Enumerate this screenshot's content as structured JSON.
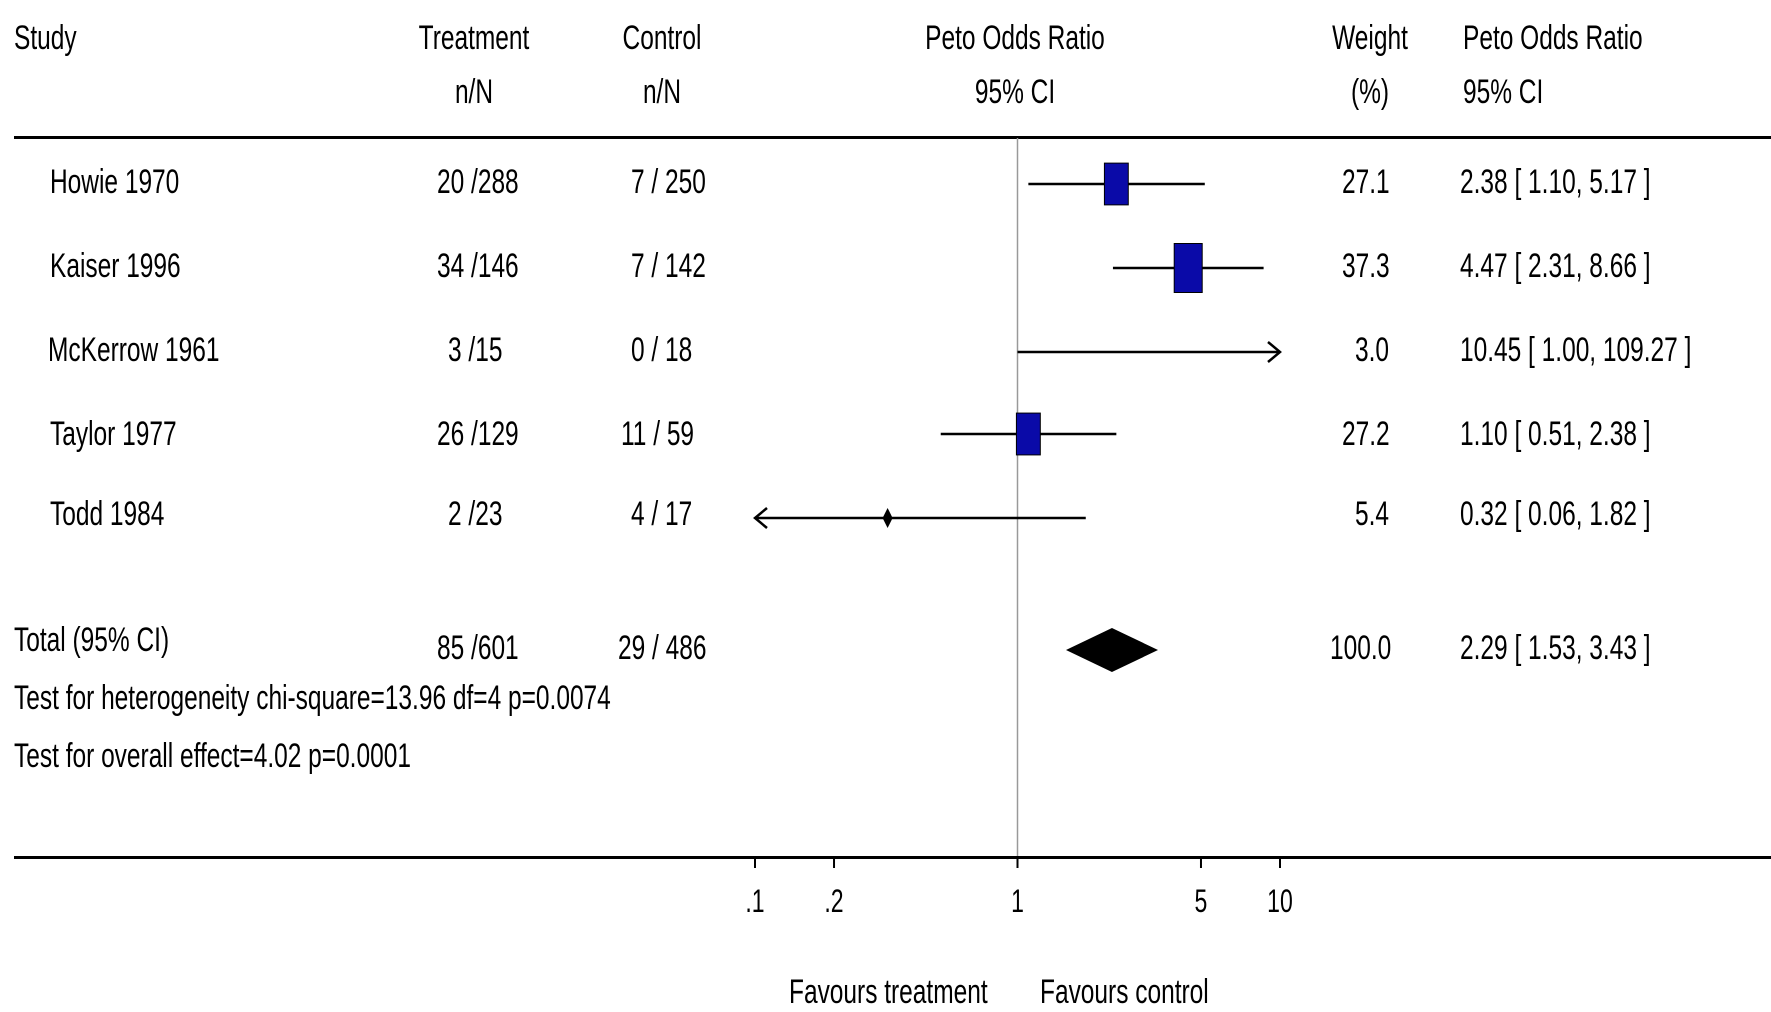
{
  "columns": {
    "study": "Study",
    "treatment": [
      "Treatment",
      "n/N"
    ],
    "control": [
      "Control",
      "n/N"
    ],
    "plot": [
      "Peto Odds Ratio",
      "95% CI"
    ],
    "weight": [
      "Weight",
      "(%)"
    ],
    "or": [
      "Peto Odds Ratio",
      "95% CI"
    ]
  },
  "rows": [
    {
      "study": "Howie 1970",
      "treatment": "20 /288",
      "control": "7 / 250",
      "weight": "27.1",
      "or_text": "2.38 [ 1.10, 5.17 ]"
    },
    {
      "study": "Kaiser 1996",
      "treatment": "34 /146",
      "control": "7 / 142",
      "weight": "37.3",
      "or_text": "4.47 [ 2.31, 8.66 ]"
    },
    {
      "study": "McKerrow  1961",
      "treatment": "3 /15",
      "control": "0 / 18",
      "weight": "3.0",
      "or_text": "10.45 [ 1.00, 109.27 ]"
    },
    {
      "study": "Taylor 1977",
      "treatment": "26 /129",
      "control": "11 / 59",
      "weight": "27.2",
      "or_text": "1.10 [ 0.51, 2.38 ]"
    },
    {
      "study": "Todd 1984",
      "treatment": "2 /23",
      "control": "4 / 17",
      "weight": "5.4",
      "or_text": "0.32 [ 0.06, 1.82 ]"
    }
  ],
  "total": {
    "study": "Total (95% CI)",
    "treatment": "85 /601",
    "control": "29 / 486",
    "weight": "100.0",
    "or_text": "2.29 [ 1.53, 3.43 ]"
  },
  "tests": {
    "heterogeneity": "Test for heterogeneity chi-square=13.96 df=4 p=0.0074",
    "overall": "Test for overall effect=4.02 p=0.0001"
  },
  "axis": {
    "favours_left": "Favours treatment",
    "favours_right": "Favours control"
  },
  "colors": {
    "marker": "#0a0aa8",
    "line": "#000000",
    "reference": "#999999"
  },
  "chart_data": {
    "type": "forest",
    "scale": "log",
    "xlim": [
      0.1,
      10
    ],
    "ticks": [
      {
        "value": 0.1,
        "label": ".1"
      },
      {
        "value": 0.2,
        "label": ".2"
      },
      {
        "value": 1,
        "label": "1"
      },
      {
        "value": 5,
        "label": "5"
      },
      {
        "value": 10,
        "label": "10"
      }
    ],
    "studies": [
      {
        "name": "Howie 1970",
        "or": 2.38,
        "lo": 1.1,
        "hi": 5.17,
        "weight": 27.1
      },
      {
        "name": "Kaiser 1996",
        "or": 4.47,
        "lo": 2.31,
        "hi": 8.66,
        "weight": 37.3
      },
      {
        "name": "McKerrow  1961",
        "or": 10.45,
        "lo": 1.0,
        "hi": 109.27,
        "weight": 3.0
      },
      {
        "name": "Taylor 1977",
        "or": 1.1,
        "lo": 0.51,
        "hi": 2.38,
        "weight": 27.2
      },
      {
        "name": "Todd 1984",
        "or": 0.32,
        "lo": 0.06,
        "hi": 1.82,
        "weight": 5.4
      }
    ],
    "pooled": {
      "name": "Total (95% CI)",
      "or": 2.29,
      "lo": 1.53,
      "hi": 3.43,
      "weight": 100.0
    }
  }
}
